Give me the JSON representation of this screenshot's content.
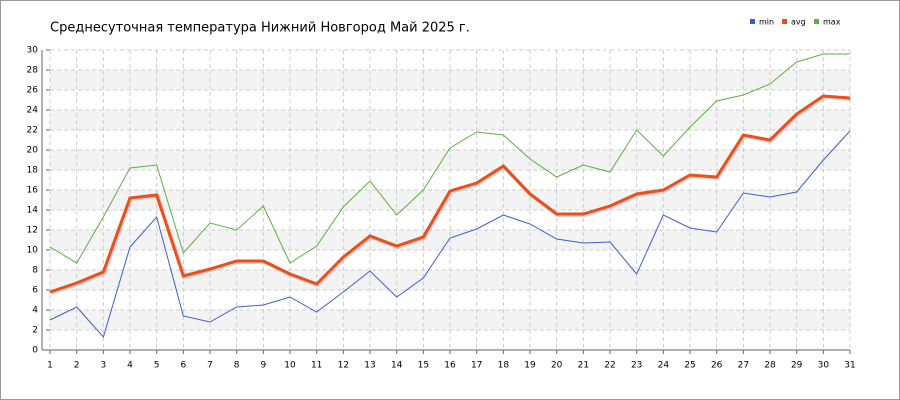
{
  "chart_data": {
    "type": "line",
    "title": "Среднесуточная температура Нижний Новгород  Май 2025 г.",
    "x": [
      1,
      2,
      3,
      4,
      5,
      6,
      7,
      8,
      9,
      10,
      11,
      12,
      13,
      14,
      15,
      16,
      17,
      18,
      19,
      20,
      21,
      22,
      23,
      24,
      25,
      26,
      27,
      28,
      29,
      30,
      31
    ],
    "series": [
      {
        "name": "min",
        "color": "#3a5fd0",
        "values": [
          3.0,
          4.3,
          1.3,
          10.3,
          13.3,
          3.4,
          2.8,
          4.3,
          4.5,
          5.3,
          3.8,
          5.8,
          7.9,
          5.3,
          7.2,
          11.2,
          12.1,
          13.5,
          12.6,
          11.1,
          10.7,
          10.8,
          7.6,
          13.5,
          12.2,
          11.8,
          15.7,
          15.3,
          15.8,
          19.0,
          21.9
        ]
      },
      {
        "name": "avg",
        "color": "#e8501e",
        "values": [
          5.8,
          6.7,
          7.8,
          15.2,
          15.5,
          7.4,
          8.1,
          8.9,
          8.9,
          7.6,
          6.6,
          9.3,
          11.4,
          10.4,
          11.3,
          15.9,
          16.7,
          18.4,
          15.6,
          13.6,
          13.6,
          14.4,
          15.6,
          16.0,
          17.5,
          17.3,
          21.5,
          21.0,
          23.6,
          25.4,
          25.2
        ]
      },
      {
        "name": "max",
        "color": "#5cb040",
        "values": [
          10.3,
          8.7,
          13.3,
          18.2,
          18.5,
          9.7,
          12.7,
          12.0,
          14.4,
          8.7,
          10.4,
          14.3,
          16.9,
          13.5,
          16.0,
          20.2,
          21.8,
          21.5,
          19.1,
          17.3,
          18.5,
          17.8,
          22.0,
          19.4,
          22.3,
          24.9,
          25.5,
          26.6,
          28.8,
          29.6,
          29.6
        ]
      }
    ],
    "xlim": [
      1,
      31
    ],
    "xticks": [
      1,
      2,
      3,
      4,
      5,
      6,
      7,
      8,
      9,
      10,
      11,
      12,
      13,
      14,
      15,
      16,
      17,
      18,
      19,
      20,
      21,
      22,
      23,
      24,
      25,
      26,
      27,
      28,
      29,
      30,
      31
    ],
    "ylim": [
      0,
      30
    ],
    "yticks": [
      0,
      2,
      4,
      6,
      8,
      10,
      12,
      14,
      16,
      18,
      20,
      22,
      24,
      26,
      28,
      30
    ],
    "grid": true,
    "legend": "top-right"
  }
}
